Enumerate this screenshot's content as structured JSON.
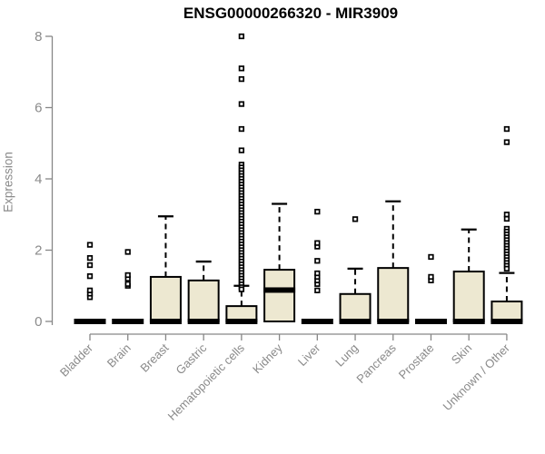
{
  "chart_data": {
    "type": "boxplot",
    "title": "ENSG00000266320 - MIR3909",
    "ylabel": "Expression",
    "xlabel": "",
    "ylim": [
      0,
      8.2
    ],
    "yticks": [
      0,
      2,
      4,
      6,
      8
    ],
    "grid": false,
    "legend": "none",
    "categories": [
      "Bladder",
      "Brain",
      "Breast",
      "Gastric",
      "Hematopoietic cells",
      "Kidney",
      "Liver",
      "Lung",
      "Pancreas",
      "Prostate",
      "Skin",
      "Unknown / Other"
    ],
    "boxes": [
      {
        "category": "Bladder",
        "q1": 0,
        "median": 0,
        "q3": 0,
        "whisker_low": 0,
        "whisker_high": 0,
        "outliers": [
          0.68,
          0.78,
          0.87,
          1.27,
          1.58,
          1.78,
          2.15
        ]
      },
      {
        "category": "Brain",
        "q1": 0,
        "median": 0,
        "q3": 0,
        "whisker_low": 0,
        "whisker_high": 0,
        "outliers": [
          1.0,
          1.05,
          1.2,
          1.3,
          1.95
        ]
      },
      {
        "category": "Breast",
        "q1": 0,
        "median": 0,
        "q3": 1.25,
        "whisker_low": 0,
        "whisker_high": 2.95,
        "outliers": []
      },
      {
        "category": "Gastric",
        "q1": 0,
        "median": 0,
        "q3": 1.15,
        "whisker_low": 0,
        "whisker_high": 1.68,
        "outliers": []
      },
      {
        "category": "Hematopoietic cells",
        "q1": 0,
        "median": 0,
        "q3": 0.43,
        "whisker_low": 0,
        "whisker_high": 1.0,
        "outliers": [
          8.0,
          7.1,
          6.8,
          6.1,
          5.4,
          4.8,
          4.4,
          4.32,
          4.24,
          4.16,
          4.08,
          4.0,
          3.92,
          3.84,
          3.76,
          3.68,
          3.6,
          3.52,
          3.44,
          3.36,
          3.28,
          3.2,
          3.12,
          3.04,
          2.96,
          2.88,
          2.8,
          2.72,
          2.64,
          2.56,
          2.48,
          2.4,
          2.32,
          2.24,
          2.16,
          2.08,
          2.0,
          1.92,
          1.84,
          1.76,
          1.68,
          1.6,
          1.52,
          1.44,
          1.36,
          1.28,
          1.2,
          1.12,
          1.04,
          0.96,
          0.9
        ]
      },
      {
        "category": "Kidney",
        "q1": 0,
        "median": 0.88,
        "q3": 1.45,
        "whisker_low": 0,
        "whisker_high": 3.3,
        "outliers": []
      },
      {
        "category": "Liver",
        "q1": 0,
        "median": 0,
        "q3": 0,
        "whisker_low": 0,
        "whisker_high": 0,
        "outliers": [
          0.87,
          1.05,
          1.15,
          1.25,
          1.35,
          1.7,
          2.1,
          2.2,
          3.08
        ]
      },
      {
        "category": "Lung",
        "q1": 0,
        "median": 0,
        "q3": 0.77,
        "whisker_low": 0,
        "whisker_high": 1.48,
        "outliers": [
          2.87
        ]
      },
      {
        "category": "Pancreas",
        "q1": 0,
        "median": 0,
        "q3": 1.5,
        "whisker_low": 0,
        "whisker_high": 3.37,
        "outliers": []
      },
      {
        "category": "Prostate",
        "q1": 0,
        "median": 0,
        "q3": 0,
        "whisker_low": 0,
        "whisker_high": 0,
        "outliers": [
          1.15,
          1.25,
          1.81
        ]
      },
      {
        "category": "Skin",
        "q1": 0,
        "median": 0,
        "q3": 1.4,
        "whisker_low": 0,
        "whisker_high": 2.58,
        "outliers": []
      },
      {
        "category": "Unknown / Other",
        "q1": 0,
        "median": 0,
        "q3": 0.56,
        "whisker_low": 0,
        "whisker_high": 1.36,
        "outliers": [
          5.4,
          5.03,
          3.0,
          2.88,
          2.6,
          2.52,
          2.44,
          2.36,
          2.28,
          2.2,
          2.12,
          2.04,
          1.96,
          1.88,
          1.8,
          1.72,
          1.64,
          1.56,
          1.48
        ]
      }
    ],
    "colors": {
      "box_fill": "#EDE8D1",
      "box_border": "#000000",
      "median": "#000000",
      "whisker": "#000000",
      "outlier_stroke": "#000000",
      "outlier_fill": "#FFFFFF",
      "axis": "#878787",
      "tick_label": "#8a8a8a",
      "title": "#000000"
    }
  }
}
